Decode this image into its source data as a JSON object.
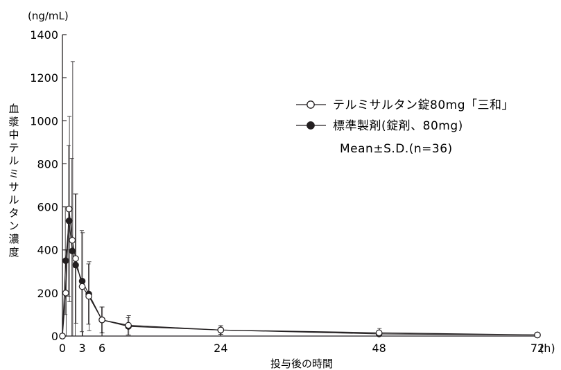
{
  "chart_data": {
    "type": "line",
    "y_unit": "(ng/mL)",
    "x_unit": "(h)",
    "xlabel": "投与後の時間",
    "ylabel": "血漿中テルミサルタン濃度",
    "xlim": [
      0,
      72
    ],
    "ylim": [
      0,
      1400
    ],
    "x_ticks": [
      0,
      3,
      6,
      24,
      48,
      72
    ],
    "x_tick_labels": [
      "0",
      "3",
      "6",
      "24",
      "48",
      "72"
    ],
    "y_ticks": [
      0,
      200,
      400,
      600,
      800,
      1000,
      1200,
      1400
    ],
    "y_tick_labels": [
      "0",
      "200",
      "400",
      "600",
      "800",
      "1000",
      "1200",
      "1400"
    ],
    "grid": false,
    "legend_position": "top-right",
    "stat_note": "Mean±S.D.(n=36)",
    "series": [
      {
        "name": "テルミサルタン錠80mg「三和」",
        "marker": "open-circle",
        "x": [
          0,
          0.5,
          1,
          1.5,
          2,
          3,
          4,
          6,
          10,
          24,
          48,
          72
        ],
        "y": [
          0,
          200,
          590,
          445,
          360,
          230,
          185,
          75,
          50,
          28,
          15,
          5
        ],
        "sd": [
          0,
          200,
          430,
          830,
          300,
          250,
          160,
          60,
          45,
          20,
          20,
          10
        ]
      },
      {
        "name": "標準製剤(錠剤、80mg)",
        "marker": "filled-circle",
        "x": [
          0,
          0.5,
          1,
          1.5,
          2,
          3,
          4,
          6,
          10,
          24,
          48,
          72
        ],
        "y": [
          0,
          350,
          535,
          395,
          330,
          255,
          195,
          75,
          45,
          28,
          10,
          5
        ],
        "sd": [
          0,
          250,
          350,
          430,
          330,
          235,
          140,
          60,
          40,
          20,
          15,
          10
        ]
      }
    ]
  }
}
